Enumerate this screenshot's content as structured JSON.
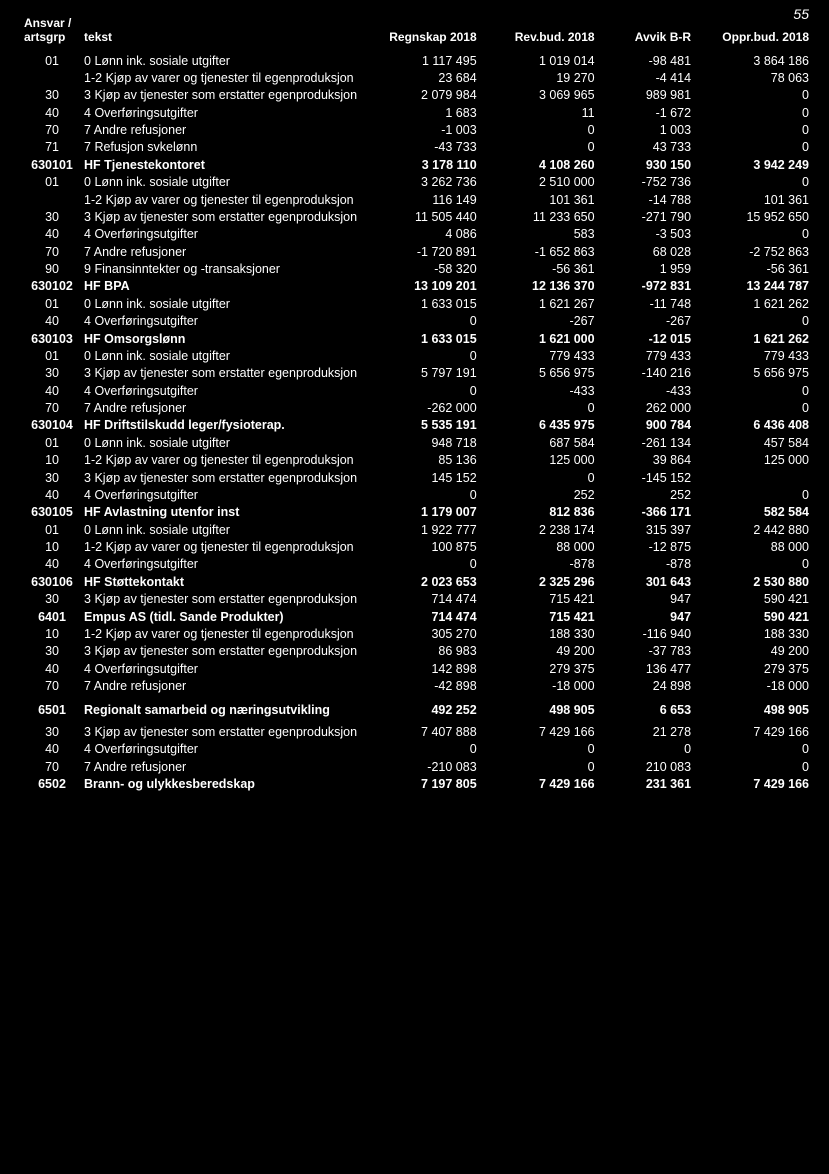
{
  "page_number": "55",
  "headers": {
    "ansvar": "Ansvar / artsgrp",
    "tekst": "tekst",
    "regnskap": "Regnskap 2018",
    "revbud": "Rev.bud. 2018",
    "avvik": "Avvik B-R",
    "opprbud": "Oppr.bud. 2018"
  },
  "rows": [
    {
      "code": "01",
      "text": "0 Lønn ink. sosiale utgifter",
      "v1": "1 117 495",
      "v2": "1 019 014",
      "v3": "-98 481",
      "v4": "3 864 186"
    },
    {
      "code": "",
      "text": "1-2 Kjøp av varer og tjenester til egenproduksjon",
      "v1": "23 684",
      "v2": "19 270",
      "v3": "-4 414",
      "v4": "78 063"
    },
    {
      "code": "30",
      "text": "3 Kjøp av tjenester som erstatter egenproduksjon",
      "v1": "2 079 984",
      "v2": "3 069 965",
      "v3": "989 981",
      "v4": "0"
    },
    {
      "code": "40",
      "text": "4 Overføringsutgifter",
      "v1": "1 683",
      "v2": "11",
      "v3": "-1 672",
      "v4": "0"
    },
    {
      "code": "70",
      "text": "7 Andre refusjoner",
      "v1": "-1 003",
      "v2": "0",
      "v3": "1 003",
      "v4": "0"
    },
    {
      "code": "71",
      "text": "7 Refusjon svkelønn",
      "v1": "-43 733",
      "v2": "0",
      "v3": "43 733",
      "v4": "0"
    },
    {
      "code": "630101",
      "text": "HF Tjenestekontoret",
      "v1": "3 178 110",
      "v2": "4 108 260",
      "v3": "930 150",
      "v4": "3 942 249",
      "bold": true
    },
    {
      "code": "01",
      "text": "0 Lønn ink. sosiale utgifter",
      "v1": "3 262 736",
      "v2": "2 510 000",
      "v3": "-752 736",
      "v4": "0"
    },
    {
      "code": "",
      "text": "1-2 Kjøp av varer og tjenester til egenproduksjon",
      "v1": "116 149",
      "v2": "101 361",
      "v3": "-14 788",
      "v4": "101 361"
    },
    {
      "code": "30",
      "text": "3 Kjøp av tjenester som erstatter egenproduksjon",
      "v1": "11 505 440",
      "v2": "11 233 650",
      "v3": "-271 790",
      "v4": "15 952 650"
    },
    {
      "code": "40",
      "text": "4 Overføringsutgifter",
      "v1": "4 086",
      "v2": "583",
      "v3": "-3 503",
      "v4": "0"
    },
    {
      "code": "70",
      "text": "7 Andre refusjoner",
      "v1": "-1 720 891",
      "v2": "-1 652 863",
      "v3": "68 028",
      "v4": "-2 752 863"
    },
    {
      "code": "90",
      "text": "9 Finansinntekter og -transaksjoner",
      "v1": "-58 320",
      "v2": "-56 361",
      "v3": "1 959",
      "v4": "-56 361"
    },
    {
      "code": "630102",
      "text": "HF BPA",
      "v1": "13 109 201",
      "v2": "12 136 370",
      "v3": "-972 831",
      "v4": "13 244 787",
      "bold": true
    },
    {
      "code": "01",
      "text": "0 Lønn ink. sosiale utgifter",
      "v1": "1 633 015",
      "v2": "1 621 267",
      "v3": "-11 748",
      "v4": "1 621 262"
    },
    {
      "code": "40",
      "text": "4 Overføringsutgifter",
      "v1": "0",
      "v2": "-267",
      "v3": "-267",
      "v4": "0"
    },
    {
      "code": "630103",
      "text": "HF Omsorgslønn",
      "v1": "1 633 015",
      "v2": "1 621 000",
      "v3": "-12 015",
      "v4": "1 621 262",
      "bold": true
    },
    {
      "code": "01",
      "text": "0 Lønn ink. sosiale utgifter",
      "v1": "0",
      "v2": "779 433",
      "v3": "779 433",
      "v4": "779 433"
    },
    {
      "code": "30",
      "text": "3 Kjøp av tjenester som erstatter egenproduksjon",
      "v1": "5 797 191",
      "v2": "5 656 975",
      "v3": "-140 216",
      "v4": "5 656 975"
    },
    {
      "code": "40",
      "text": "4 Overføringsutgifter",
      "v1": "0",
      "v2": "-433",
      "v3": "-433",
      "v4": "0"
    },
    {
      "code": "70",
      "text": "7 Andre refusjoner",
      "v1": "-262 000",
      "v2": "0",
      "v3": "262 000",
      "v4": "0"
    },
    {
      "code": "630104",
      "text": "HF Driftstilskudd leger/fysioterap.",
      "v1": "5 535 191",
      "v2": "6 435 975",
      "v3": "900 784",
      "v4": "6 436 408",
      "bold": true
    },
    {
      "code": "01",
      "text": "0 Lønn ink. sosiale utgifter",
      "v1": "948 718",
      "v2": "687 584",
      "v3": "-261 134",
      "v4": "457 584"
    },
    {
      "code": "10",
      "text": "1-2 Kjøp av varer og tjenester til egenproduksjon",
      "v1": "85 136",
      "v2": "125 000",
      "v3": "39 864",
      "v4": "125 000"
    },
    {
      "code": "30",
      "text": "3 Kjøp av tjenester som erstatter egenproduksjon",
      "v1": "145 152",
      "v2": "0",
      "v3": "-145 152",
      "v4": ""
    },
    {
      "code": "40",
      "text": "4 Overføringsutgifter",
      "v1": "0",
      "v2": "252",
      "v3": "252",
      "v4": "0"
    },
    {
      "code": "630105",
      "text": "HF Avlastning utenfor inst",
      "v1": "1 179 007",
      "v2": "812 836",
      "v3": "-366 171",
      "v4": "582 584",
      "bold": true
    },
    {
      "code": "01",
      "text": "0 Lønn ink. sosiale utgifter",
      "v1": "1 922 777",
      "v2": "2 238 174",
      "v3": "315 397",
      "v4": "2 442 880"
    },
    {
      "code": "10",
      "text": "1-2 Kjøp av varer og tjenester til egenproduksjon",
      "v1": "100 875",
      "v2": "88 000",
      "v3": "-12 875",
      "v4": "88 000"
    },
    {
      "code": "40",
      "text": "4 Overføringsutgifter",
      "v1": "0",
      "v2": "-878",
      "v3": "-878",
      "v4": "0"
    },
    {
      "code": "630106",
      "text": "HF Støttekontakt",
      "v1": "2 023 653",
      "v2": "2 325 296",
      "v3": "301 643",
      "v4": "2 530 880",
      "bold": true
    },
    {
      "code": "30",
      "text": "3 Kjøp av tjenester som erstatter egenproduksjon",
      "v1": "714 474",
      "v2": "715 421",
      "v3": "947",
      "v4": "590 421"
    },
    {
      "code": "6401",
      "text": "Empus AS (tidl. Sande Produkter)",
      "v1": "714 474",
      "v2": "715 421",
      "v3": "947",
      "v4": "590 421",
      "bold": true
    },
    {
      "code": "10",
      "text": "1-2 Kjøp av varer og tjenester til egenproduksjon",
      "v1": "305 270",
      "v2": "188 330",
      "v3": "-116 940",
      "v4": "188 330"
    },
    {
      "code": "30",
      "text": "3 Kjøp av tjenester som erstatter egenproduksjon",
      "v1": "86 983",
      "v2": "49 200",
      "v3": "-37 783",
      "v4": "49 200"
    },
    {
      "code": "40",
      "text": "4 Overføringsutgifter",
      "v1": "142 898",
      "v2": "279 375",
      "v3": "136 477",
      "v4": "279 375"
    },
    {
      "code": "70",
      "text": "7 Andre refusjoner",
      "v1": "-42 898",
      "v2": "-18 000",
      "v3": "24 898",
      "v4": "-18 000"
    },
    {
      "code": "6501",
      "text": "Regionalt samarbeid og næringsutvikling",
      "v1": "492 252",
      "v2": "498 905",
      "v3": "6 653",
      "v4": "498 905",
      "bold": true,
      "spaced": true
    },
    {
      "code": "30",
      "text": "3 Kjøp av tjenester som erstatter egenproduksjon",
      "v1": "7 407 888",
      "v2": "7 429 166",
      "v3": "21 278",
      "v4": "7 429 166"
    },
    {
      "code": "40",
      "text": "4 Overføringsutgifter",
      "v1": "0",
      "v2": "0",
      "v3": "0",
      "v4": "0"
    },
    {
      "code": "70",
      "text": "7 Andre refusjoner",
      "v1": "-210 083",
      "v2": "0",
      "v3": "210 083",
      "v4": "0"
    },
    {
      "code": "6502",
      "text": "Brann- og ulykkesberedskap",
      "v1": "7 197 805",
      "v2": "7 429 166",
      "v3": "231 361",
      "v4": "7 429 166",
      "bold": true
    }
  ]
}
